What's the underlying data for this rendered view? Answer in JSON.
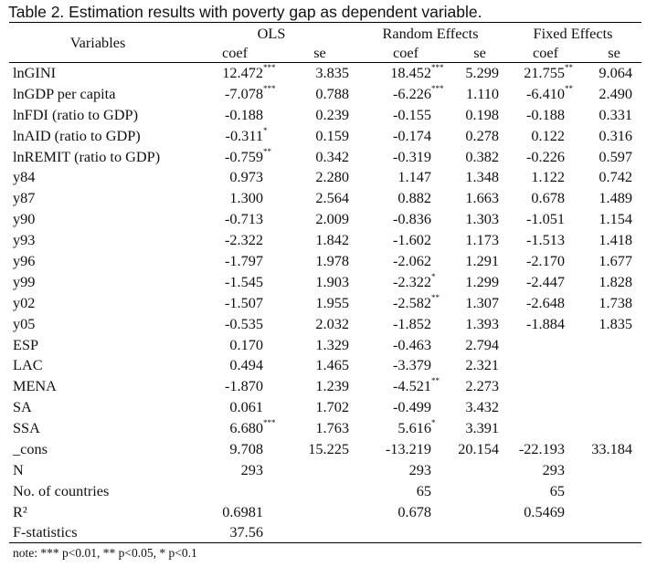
{
  "caption": "Table 2. Estimation results with poverty gap as dependent variable.",
  "headers": {
    "variables": "Variables",
    "groups": [
      "OLS",
      "Random Effects",
      "Fixed Effects"
    ],
    "sub": [
      "coef",
      "se",
      "coef",
      "se",
      "coef",
      "se"
    ]
  },
  "rows": [
    {
      "name": "lnGINI",
      "cells": [
        {
          "v": "12.472",
          "s": "***"
        },
        {
          "v": "3.835"
        },
        {
          "v": "18.452",
          "s": "***"
        },
        {
          "v": "5.299"
        },
        {
          "v": "21.755",
          "s": "**"
        },
        {
          "v": "9.064"
        }
      ]
    },
    {
      "name": "lnGDP per capita",
      "cells": [
        {
          "v": "-7.078",
          "s": "***"
        },
        {
          "v": "0.788"
        },
        {
          "v": "-6.226",
          "s": "***"
        },
        {
          "v": "1.110"
        },
        {
          "v": "-6.410",
          "s": "**"
        },
        {
          "v": "2.490"
        }
      ]
    },
    {
      "name": "lnFDI (ratio to GDP)",
      "cells": [
        {
          "v": "-0.188"
        },
        {
          "v": "0.239"
        },
        {
          "v": "-0.155"
        },
        {
          "v": "0.198"
        },
        {
          "v": "-0.188"
        },
        {
          "v": "0.331"
        }
      ]
    },
    {
      "name": "lnAID (ratio to GDP)",
      "cells": [
        {
          "v": "-0.311",
          "s": "*"
        },
        {
          "v": "0.159"
        },
        {
          "v": "-0.174"
        },
        {
          "v": "0.278"
        },
        {
          "v": "0.122"
        },
        {
          "v": "0.316"
        }
      ]
    },
    {
      "name": "lnREMIT (ratio to GDP)",
      "cells": [
        {
          "v": "-0.759",
          "s": "**"
        },
        {
          "v": "0.342"
        },
        {
          "v": "-0.319"
        },
        {
          "v": "0.382"
        },
        {
          "v": "-0.226"
        },
        {
          "v": "0.597"
        }
      ]
    },
    {
      "name": "y84",
      "cells": [
        {
          "v": "0.973"
        },
        {
          "v": "2.280"
        },
        {
          "v": "1.147"
        },
        {
          "v": "1.348"
        },
        {
          "v": "1.122"
        },
        {
          "v": "0.742"
        }
      ]
    },
    {
      "name": "y87",
      "cells": [
        {
          "v": "1.300"
        },
        {
          "v": "2.564"
        },
        {
          "v": "0.882"
        },
        {
          "v": "1.663"
        },
        {
          "v": "0.678"
        },
        {
          "v": "1.489"
        }
      ]
    },
    {
      "name": "y90",
      "cells": [
        {
          "v": "-0.713"
        },
        {
          "v": "2.009"
        },
        {
          "v": "-0.836"
        },
        {
          "v": "1.303"
        },
        {
          "v": "-1.051"
        },
        {
          "v": "1.154"
        }
      ]
    },
    {
      "name": "y93",
      "cells": [
        {
          "v": "-2.322"
        },
        {
          "v": "1.842"
        },
        {
          "v": "-1.602"
        },
        {
          "v": "1.173"
        },
        {
          "v": "-1.513"
        },
        {
          "v": "1.418"
        }
      ]
    },
    {
      "name": "y96",
      "cells": [
        {
          "v": "-1.797"
        },
        {
          "v": "1.978"
        },
        {
          "v": "-2.062"
        },
        {
          "v": "1.291"
        },
        {
          "v": "-2.170"
        },
        {
          "v": "1.677"
        }
      ]
    },
    {
      "name": "y99",
      "cells": [
        {
          "v": "-1.545"
        },
        {
          "v": "1.903"
        },
        {
          "v": "-2.322",
          "s": "*"
        },
        {
          "v": "1.299"
        },
        {
          "v": "-2.447"
        },
        {
          "v": "1.828"
        }
      ]
    },
    {
      "name": "y02",
      "cells": [
        {
          "v": "-1.507"
        },
        {
          "v": "1.955"
        },
        {
          "v": "-2.582",
          "s": "**"
        },
        {
          "v": "1.307"
        },
        {
          "v": "-2.648"
        },
        {
          "v": "1.738"
        }
      ]
    },
    {
      "name": "y05",
      "cells": [
        {
          "v": "-0.535"
        },
        {
          "v": "2.032"
        },
        {
          "v": "-1.852"
        },
        {
          "v": "1.393"
        },
        {
          "v": "-1.884"
        },
        {
          "v": "1.835"
        }
      ]
    },
    {
      "name": "ESP",
      "cells": [
        {
          "v": "0.170"
        },
        {
          "v": "1.329"
        },
        {
          "v": "-0.463"
        },
        {
          "v": "2.794"
        },
        {
          "v": ""
        },
        {
          "v": ""
        }
      ]
    },
    {
      "name": "LAC",
      "cells": [
        {
          "v": "0.494"
        },
        {
          "v": "1.465"
        },
        {
          "v": "-3.379"
        },
        {
          "v": "2.321"
        },
        {
          "v": ""
        },
        {
          "v": ""
        }
      ]
    },
    {
      "name": "MENA",
      "cells": [
        {
          "v": "-1.870"
        },
        {
          "v": "1.239"
        },
        {
          "v": "-4.521",
          "s": "**"
        },
        {
          "v": "2.273"
        },
        {
          "v": ""
        },
        {
          "v": ""
        }
      ]
    },
    {
      "name": "SA",
      "cells": [
        {
          "v": "0.061"
        },
        {
          "v": "1.702"
        },
        {
          "v": "-0.499"
        },
        {
          "v": "3.432"
        },
        {
          "v": ""
        },
        {
          "v": ""
        }
      ]
    },
    {
      "name": "SSA",
      "cells": [
        {
          "v": "6.680",
          "s": "***"
        },
        {
          "v": "1.763"
        },
        {
          "v": "5.616",
          "s": "*"
        },
        {
          "v": "3.391"
        },
        {
          "v": ""
        },
        {
          "v": ""
        }
      ]
    },
    {
      "name": "_cons",
      "cells": [
        {
          "v": "9.708"
        },
        {
          "v": "15.225"
        },
        {
          "v": "-13.219"
        },
        {
          "v": "20.154"
        },
        {
          "v": "-22.193"
        },
        {
          "v": "33.184"
        }
      ]
    },
    {
      "name": "N",
      "cells": [
        {
          "v": "293"
        },
        {
          "v": ""
        },
        {
          "v": "293"
        },
        {
          "v": ""
        },
        {
          "v": "293"
        },
        {
          "v": ""
        }
      ]
    },
    {
      "name": "No. of countries",
      "cells": [
        {
          "v": ""
        },
        {
          "v": ""
        },
        {
          "v": "65"
        },
        {
          "v": ""
        },
        {
          "v": "65"
        },
        {
          "v": ""
        }
      ]
    },
    {
      "name": "R²",
      "cells": [
        {
          "v": "0.6981"
        },
        {
          "v": ""
        },
        {
          "v": "0.678"
        },
        {
          "v": ""
        },
        {
          "v": "0.5469"
        },
        {
          "v": ""
        }
      ]
    },
    {
      "name": "F-statistics",
      "cells": [
        {
          "v": "37.56"
        },
        {
          "v": ""
        },
        {
          "v": ""
        },
        {
          "v": ""
        },
        {
          "v": ""
        },
        {
          "v": ""
        }
      ]
    }
  ],
  "note": "note:  *** p<0.01, ** p<0.05, * p<0.1"
}
